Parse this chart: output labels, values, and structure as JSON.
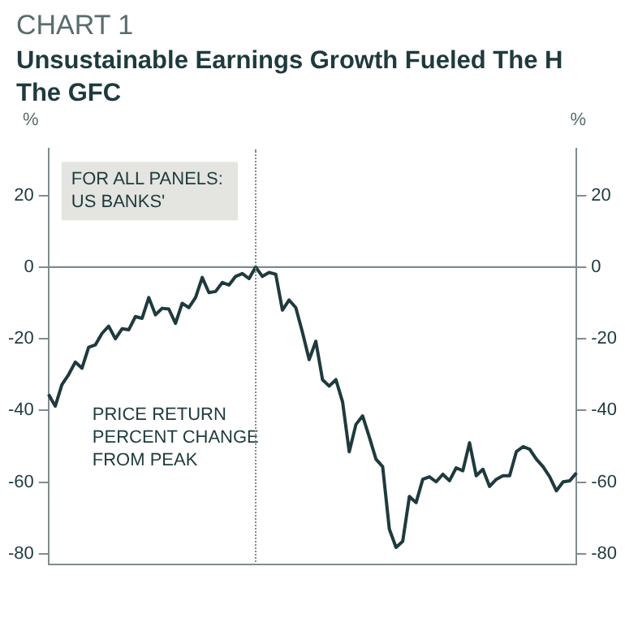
{
  "chart_data": {
    "type": "line",
    "subtitle": "CHART 1",
    "title": "Unsustainable Earnings Growth Fueled The H\nThe GFC",
    "ylabel": "%",
    "y2label": "%",
    "categories": [
      null,
      null,
      null,
      null,
      null,
      null,
      null,
      null,
      null,
      null,
      null,
      null,
      null,
      null,
      null,
      null,
      null,
      null,
      null,
      null,
      null,
      null,
      null,
      null,
      null,
      null,
      null,
      null,
      null,
      null,
      null,
      null,
      null,
      null,
      null,
      null,
      null,
      null,
      null,
      null,
      null,
      null,
      null,
      null,
      null,
      null,
      null,
      null,
      null,
      null,
      null,
      null,
      null,
      null,
      null,
      null,
      null,
      null,
      null,
      null,
      null,
      null,
      null,
      null,
      null,
      null,
      null,
      null,
      null,
      null,
      null,
      null,
      null,
      null,
      null,
      null,
      null,
      null,
      null,
      null
    ],
    "series": [
      {
        "color": "#1f3a3d",
        "values": [
          -35.5,
          -38.8,
          -32.8,
          -30,
          -26.5,
          -28.2,
          -22.4,
          -21.7,
          -18.5,
          -16.5,
          -20,
          -17.2,
          -17.5,
          -13.8,
          -14.3,
          -8.5,
          -13.3,
          -11.5,
          -11.7,
          -15.7,
          -10.1,
          -11.3,
          -8.5,
          -2.9,
          -7.1,
          -6.8,
          -4.3,
          -5,
          -2.6,
          -1.8,
          -3.2,
          0,
          -2.6,
          -1.5,
          -2,
          -12,
          -9.2,
          -11.3,
          -18.2,
          -25.8,
          -20.7,
          -31.4,
          -33.2,
          -31.4,
          -37.6,
          -51.5,
          -43.9,
          -41.5,
          -47.4,
          -53.6,
          -55.7,
          -73.1,
          -78.2,
          -76.5,
          -64,
          -65.7,
          -59.2,
          -58.5,
          -59.9,
          -57.8,
          -59.6,
          -56,
          -56.8,
          -49,
          -58.2,
          -56.4,
          -61.2,
          -59.2,
          -58.2,
          -58.2,
          -51.5,
          -50.1,
          -50.8,
          -53.6,
          -55.7,
          -58.5,
          -62.4,
          -59.9,
          -59.6,
          -57.4
        ]
      }
    ],
    "ylim": [
      -83,
      33
    ],
    "yticks": [
      20,
      0,
      -20,
      -40,
      -60,
      -80
    ],
    "y2lim": [
      -83,
      33
    ],
    "y2ticks": [
      20,
      0,
      -20,
      -40,
      -60,
      -80
    ],
    "grid": false,
    "legend": false,
    "marker": "none",
    "line_style": "solid",
    "ref_lines": [
      {
        "axis": "y",
        "value": 0,
        "color": "#7f8c8d",
        "line_style": "solid"
      }
    ],
    "annotations": [
      "FOR ALL PANELS:\nUS BANKS'",
      "PRICE RETURN\nPERCENT CHANGE\nFROM PEAK"
    ]
  }
}
